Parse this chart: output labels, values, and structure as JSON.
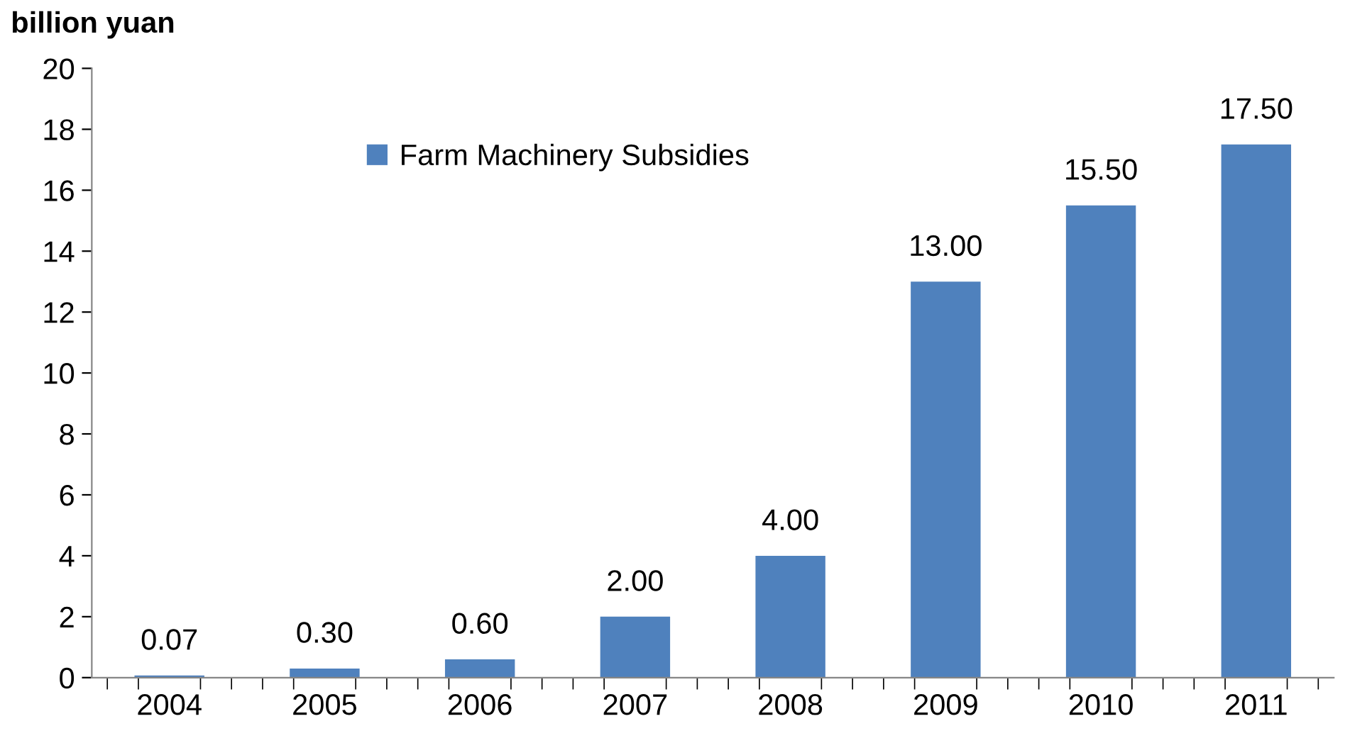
{
  "chart_data": {
    "type": "bar",
    "ylabel": "billion yuan",
    "categories": [
      "2004",
      "2005",
      "2006",
      "2007",
      "2008",
      "2009",
      "2010",
      "2011"
    ],
    "series": [
      {
        "name": "Farm Machinery Subsidies",
        "color": "#4f81bd",
        "values": [
          0.07,
          0.3,
          0.6,
          2,
          4,
          13,
          15.5,
          17.5
        ],
        "value_labels": [
          "0.07",
          "0.30",
          "0.60",
          "2.00",
          "4.00",
          "13.00",
          "15.50",
          "17.50"
        ]
      }
    ],
    "ylim": [
      0,
      20
    ],
    "yticks": [
      0,
      2,
      4,
      6,
      8,
      10,
      12,
      14,
      16,
      18,
      20
    ],
    "grid": false,
    "legend": "top left"
  }
}
